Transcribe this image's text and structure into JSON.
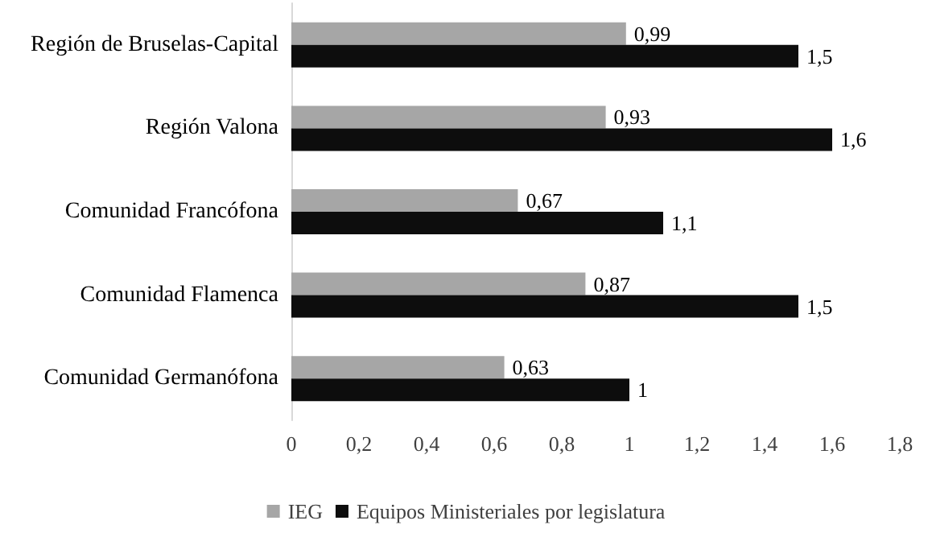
{
  "chart_data": {
    "type": "bar",
    "orientation": "horizontal",
    "categories": [
      "Región de Bruselas-Capital",
      "Región Valona",
      "Comunidad Francófona",
      "Comunidad Flamenca",
      "Comunidad Germanófona"
    ],
    "series": [
      {
        "name": "IEG",
        "color": "#a6a6a6",
        "values": [
          0.99,
          0.93,
          0.67,
          0.87,
          0.63
        ],
        "value_labels": [
          "0,99",
          "0,93",
          "0,67",
          "0,87",
          "0,63"
        ]
      },
      {
        "name": "Equipos Ministeriales por legislatura",
        "color": "#0d0d0d",
        "values": [
          1.5,
          1.6,
          1.1,
          1.5,
          1
        ],
        "value_labels": [
          "1,5",
          "1,6",
          "1,1",
          "1,5",
          "1"
        ]
      }
    ],
    "xlim": [
      0,
      1.8
    ],
    "xticks": [
      0,
      {
        "value": 0.2,
        "label": "0,2"
      },
      {
        "value": 0.4,
        "label": "0,4"
      },
      {
        "value": 0.6,
        "label": "0,6"
      },
      {
        "value": 0.8,
        "label": "0,8"
      },
      1,
      {
        "value": 1.2,
        "label": "1,2"
      },
      {
        "value": 1.4,
        "label": "1,4"
      },
      {
        "value": 1.6,
        "label": "1,6"
      },
      {
        "value": 1.8,
        "label": "1,8"
      }
    ],
    "grid": false,
    "legend": "bottom"
  }
}
